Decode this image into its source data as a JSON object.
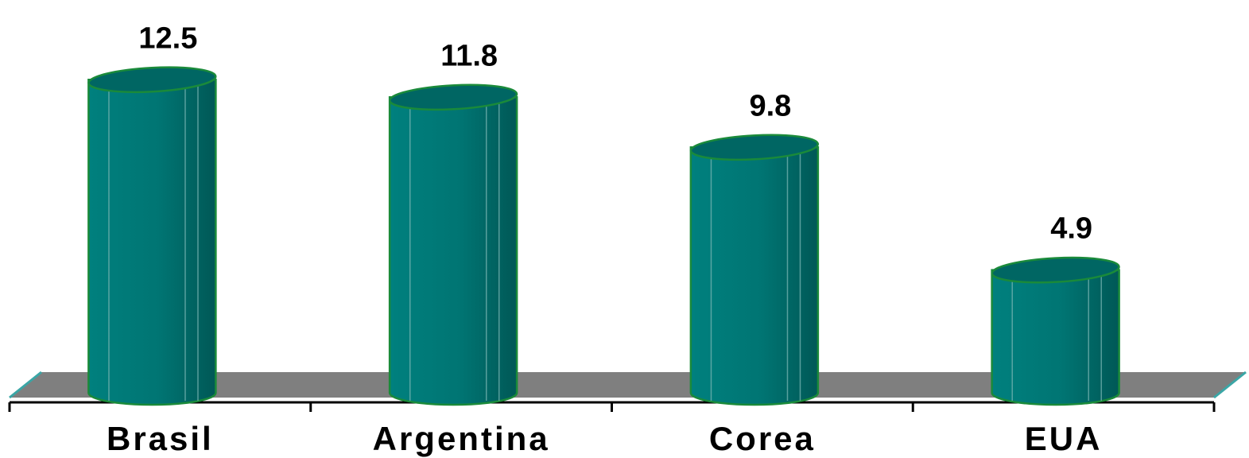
{
  "chart_data": {
    "type": "bar",
    "title": "",
    "xlabel": "",
    "ylabel": "",
    "categories": [
      "Brasil",
      "Argentina",
      "Corea",
      "EUA"
    ],
    "values": [
      12.5,
      11.8,
      9.8,
      4.9
    ],
    "data_labels": [
      "12.5",
      "11.8",
      "9.8",
      "4.9"
    ],
    "ylim": [
      0,
      13
    ],
    "grid": false,
    "legend": "none",
    "bar_style": "3d-cylinder"
  },
  "colors": {
    "bar_front": "#007c7a",
    "bar_side": "#005e5c",
    "bar_top": "#006663",
    "bar_outline": "#1a8a3a",
    "floor": "#7f7f7f",
    "floor_edge": "#3aa6a6",
    "axis": "#000000"
  }
}
